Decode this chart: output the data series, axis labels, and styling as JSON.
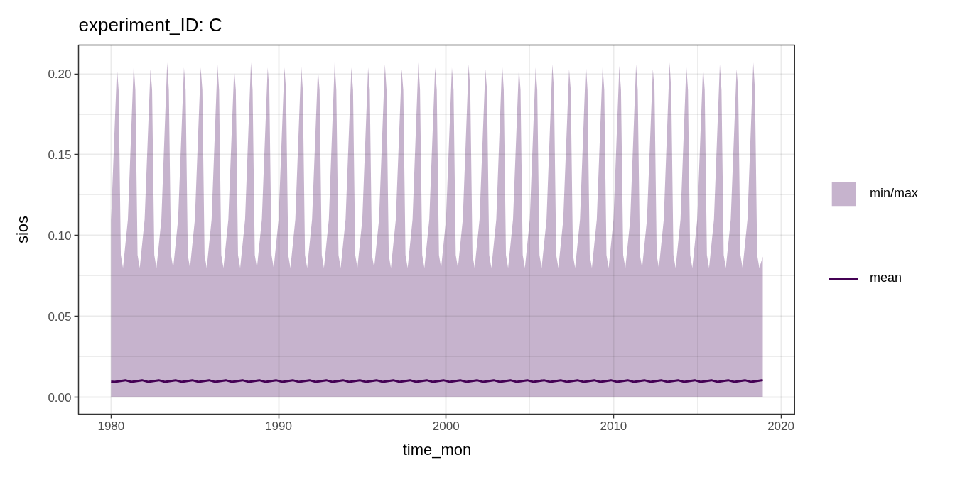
{
  "chart_data": {
    "type": "area",
    "title": "experiment_ID: C",
    "xlabel": "time_mon",
    "ylabel": "sios",
    "xlim": [
      "1978-01-20",
      "2020-11-13"
    ],
    "xticks": [
      {
        "value": "1980",
        "label": "1980"
      },
      {
        "value": "1990",
        "label": "1990"
      },
      {
        "value": "2000",
        "label": "2000"
      },
      {
        "value": "2010",
        "label": "2010"
      },
      {
        "value": "2020",
        "label": "2020"
      }
    ],
    "ylim": [
      -0.0104,
      0.2178
    ],
    "yticks": [
      {
        "value": 0,
        "label": "0.00"
      },
      {
        "value": 0.05,
        "label": "0.05"
      },
      {
        "value": 0.1,
        "label": "0.10"
      },
      {
        "value": 0.15,
        "label": "0.15"
      },
      {
        "value": 0.2,
        "label": "0.20"
      }
    ],
    "grid": true,
    "legend": "right",
    "series": [
      {
        "name": "min/max",
        "color": "#c6b3cd",
        "x": [
          "1980-01-01",
          "1980-05-08",
          "1980-06-13",
          "1980-07-31",
          "1980-09-16",
          "1981-01-01",
          "1981-05-08",
          "1981-06-13",
          "1981-07-31",
          "1981-09-16",
          "1982-01-01",
          "1982-05-08",
          "1982-06-13",
          "1982-07-31",
          "1982-09-16",
          "1983-01-01",
          "1983-05-08",
          "1983-06-13",
          "1983-07-31",
          "1983-09-16",
          "1984-01-01",
          "1984-05-08",
          "1984-06-13",
          "1984-07-31",
          "1984-09-16",
          "1985-01-01",
          "1985-05-08",
          "1985-06-13",
          "1985-07-31",
          "1985-09-16",
          "1986-01-01",
          "1986-05-08",
          "1986-06-13",
          "1986-07-31",
          "1986-09-16",
          "1987-01-01",
          "1987-05-08",
          "1987-06-13",
          "1987-07-31",
          "1987-09-16",
          "1988-01-01",
          "1988-05-08",
          "1988-06-13",
          "1988-07-31",
          "1988-09-16",
          "1989-01-01",
          "1989-05-08",
          "1989-06-13",
          "1989-07-31",
          "1989-09-16",
          "1990-01-01",
          "1990-05-08",
          "1990-06-13",
          "1990-07-31",
          "1990-09-16",
          "1991-01-01",
          "1991-05-08",
          "1991-06-13",
          "1991-07-31",
          "1991-09-16",
          "1992-01-01",
          "1992-05-08",
          "1992-06-13",
          "1992-07-31",
          "1992-09-16",
          "1993-01-01",
          "1993-05-08",
          "1993-06-13",
          "1993-07-31",
          "1993-09-16",
          "1994-01-01",
          "1994-05-08",
          "1994-06-13",
          "1994-07-31",
          "1994-09-16",
          "1995-01-01",
          "1995-05-08",
          "1995-06-13",
          "1995-07-31",
          "1995-09-16",
          "1996-01-01",
          "1996-05-08",
          "1996-06-13",
          "1996-07-31",
          "1996-09-16",
          "1997-01-01",
          "1997-05-08",
          "1997-06-13",
          "1997-07-31",
          "1997-09-16",
          "1998-01-01",
          "1998-05-08",
          "1998-06-13",
          "1998-07-31",
          "1998-09-16",
          "1999-01-01",
          "1999-05-08",
          "1999-06-13",
          "1999-07-31",
          "1999-09-16",
          "2000-01-01",
          "2000-05-08",
          "2000-06-13",
          "2000-07-31",
          "2000-09-16",
          "2001-01-01",
          "2001-05-08",
          "2001-06-13",
          "2001-07-31",
          "2001-09-16",
          "2002-01-01",
          "2002-05-08",
          "2002-06-13",
          "2002-07-31",
          "2002-09-16",
          "2003-01-01",
          "2003-05-08",
          "2003-06-13",
          "2003-07-31",
          "2003-09-16",
          "2004-01-01",
          "2004-05-08",
          "2004-06-13",
          "2004-07-31",
          "2004-09-16",
          "2005-01-01",
          "2005-05-08",
          "2005-06-13",
          "2005-07-31",
          "2005-09-16",
          "2006-01-01",
          "2006-05-08",
          "2006-06-13",
          "2006-07-31",
          "2006-09-16",
          "2007-01-01",
          "2007-05-08",
          "2007-06-13",
          "2007-07-31",
          "2007-09-16",
          "2008-01-01",
          "2008-05-08",
          "2008-06-13",
          "2008-07-31",
          "2008-09-16",
          "2009-01-01",
          "2009-05-08",
          "2009-06-13",
          "2009-07-31",
          "2009-09-16",
          "2010-01-01",
          "2010-05-08",
          "2010-06-13",
          "2010-07-31",
          "2010-09-16",
          "2011-01-01",
          "2011-05-08",
          "2011-06-13",
          "2011-07-31",
          "2011-09-16",
          "2012-01-01",
          "2012-05-08",
          "2012-06-13",
          "2012-07-31",
          "2012-09-16",
          "2013-01-01",
          "2013-05-08",
          "2013-06-13",
          "2013-07-31",
          "2013-09-16",
          "2014-01-01",
          "2014-05-08",
          "2014-06-13",
          "2014-07-31",
          "2014-09-16",
          "2015-01-01",
          "2015-05-08",
          "2015-06-13",
          "2015-07-31",
          "2015-09-16",
          "2016-01-01",
          "2016-05-08",
          "2016-06-13",
          "2016-07-31",
          "2016-09-16",
          "2017-01-01",
          "2017-05-08",
          "2017-06-13",
          "2017-07-31",
          "2017-09-16",
          "2018-01-01",
          "2018-05-08",
          "2018-06-13",
          "2018-07-31",
          "2018-09-16",
          "2018-12-01"
        ],
        "values": [
          0.11,
          0.204,
          0.19,
          0.088,
          0.08,
          0.11,
          0.206,
          0.19,
          0.088,
          0.08,
          0.11,
          0.203,
          0.19,
          0.088,
          0.08,
          0.11,
          0.207,
          0.19,
          0.088,
          0.08,
          0.11,
          0.204,
          0.19,
          0.088,
          0.08,
          0.11,
          0.204,
          0.19,
          0.088,
          0.08,
          0.11,
          0.206,
          0.19,
          0.088,
          0.08,
          0.11,
          0.203,
          0.19,
          0.088,
          0.08,
          0.11,
          0.207,
          0.19,
          0.088,
          0.08,
          0.11,
          0.204,
          0.19,
          0.088,
          0.08,
          0.11,
          0.204,
          0.19,
          0.088,
          0.08,
          0.11,
          0.206,
          0.19,
          0.088,
          0.08,
          0.11,
          0.203,
          0.19,
          0.088,
          0.08,
          0.11,
          0.207,
          0.19,
          0.088,
          0.08,
          0.11,
          0.204,
          0.19,
          0.088,
          0.08,
          0.11,
          0.204,
          0.19,
          0.088,
          0.08,
          0.11,
          0.206,
          0.19,
          0.088,
          0.08,
          0.11,
          0.203,
          0.19,
          0.088,
          0.08,
          0.11,
          0.207,
          0.19,
          0.088,
          0.08,
          0.11,
          0.204,
          0.19,
          0.088,
          0.08,
          0.11,
          0.204,
          0.19,
          0.088,
          0.08,
          0.11,
          0.206,
          0.19,
          0.088,
          0.08,
          0.11,
          0.203,
          0.19,
          0.088,
          0.08,
          0.11,
          0.207,
          0.19,
          0.088,
          0.08,
          0.11,
          0.204,
          0.19,
          0.088,
          0.08,
          0.11,
          0.204,
          0.19,
          0.088,
          0.08,
          0.11,
          0.206,
          0.19,
          0.088,
          0.08,
          0.11,
          0.203,
          0.19,
          0.088,
          0.08,
          0.11,
          0.207,
          0.19,
          0.088,
          0.08,
          0.11,
          0.205,
          0.19,
          0.088,
          0.08,
          0.11,
          0.205,
          0.19,
          0.088,
          0.08,
          0.11,
          0.206,
          0.19,
          0.088,
          0.08,
          0.11,
          0.203,
          0.19,
          0.088,
          0.08,
          0.11,
          0.207,
          0.19,
          0.088,
          0.08,
          0.11,
          0.205,
          0.19,
          0.088,
          0.08,
          0.11,
          0.205,
          0.19,
          0.088,
          0.08,
          0.11,
          0.206,
          0.19,
          0.088,
          0.08,
          0.11,
          0.203,
          0.19,
          0.088,
          0.08,
          0.11,
          0.207,
          0.19,
          0.088,
          0.08,
          0.087
        ]
      },
      {
        "name": "mean",
        "type": "line",
        "color": "#440154",
        "x": [
          "1980-01-01",
          "1980-03-15",
          "1980-11-07",
          "1981-03-15",
          "1981-11-07",
          "1982-03-15",
          "1982-11-07",
          "1983-03-15",
          "1983-11-07",
          "1984-03-15",
          "1984-11-07",
          "1985-03-15",
          "1985-11-07",
          "1986-03-15",
          "1986-11-07",
          "1987-03-15",
          "1987-11-07",
          "1988-03-15",
          "1988-11-07",
          "1989-03-15",
          "1989-11-07",
          "1990-03-15",
          "1990-11-07",
          "1991-03-15",
          "1991-11-07",
          "1992-03-15",
          "1992-11-07",
          "1993-03-15",
          "1993-11-07",
          "1994-03-15",
          "1994-11-07",
          "1995-03-15",
          "1995-11-07",
          "1996-03-15",
          "1996-11-07",
          "1997-03-15",
          "1997-11-07",
          "1998-03-15",
          "1998-11-07",
          "1999-03-15",
          "1999-11-07",
          "2000-03-15",
          "2000-11-07",
          "2001-03-15",
          "2001-11-07",
          "2002-03-15",
          "2002-11-07",
          "2003-03-15",
          "2003-11-07",
          "2004-03-15",
          "2004-11-07",
          "2005-03-15",
          "2005-11-07",
          "2006-03-15",
          "2006-11-07",
          "2007-03-15",
          "2007-11-07",
          "2008-03-15",
          "2008-11-07",
          "2009-03-15",
          "2009-11-07",
          "2010-03-15",
          "2010-11-07",
          "2011-03-15",
          "2011-11-07",
          "2012-03-15",
          "2012-11-07",
          "2013-03-15",
          "2013-11-07",
          "2014-03-15",
          "2014-11-07",
          "2015-03-15",
          "2015-11-07",
          "2016-03-15",
          "2016-11-07",
          "2017-03-15",
          "2017-11-07",
          "2018-03-15",
          "2018-11-07",
          "2018-12-01"
        ],
        "values": [
          0.0098,
          0.0096,
          0.0106,
          0.0096,
          0.0106,
          0.0096,
          0.0106,
          0.0096,
          0.0106,
          0.0096,
          0.0106,
          0.0096,
          0.0106,
          0.0096,
          0.0106,
          0.0096,
          0.0106,
          0.0096,
          0.0106,
          0.0096,
          0.0106,
          0.0096,
          0.0106,
          0.0096,
          0.0106,
          0.0096,
          0.0106,
          0.0096,
          0.0106,
          0.0096,
          0.0106,
          0.0096,
          0.0106,
          0.0096,
          0.0106,
          0.0096,
          0.0106,
          0.0096,
          0.0106,
          0.0096,
          0.0106,
          0.0096,
          0.0106,
          0.0096,
          0.0106,
          0.0096,
          0.0106,
          0.0096,
          0.0106,
          0.0096,
          0.0106,
          0.0096,
          0.0106,
          0.0096,
          0.0106,
          0.0096,
          0.0106,
          0.0096,
          0.0106,
          0.0096,
          0.0106,
          0.0096,
          0.0106,
          0.0096,
          0.0106,
          0.0096,
          0.0106,
          0.0096,
          0.0106,
          0.0096,
          0.0106,
          0.0096,
          0.0106,
          0.0096,
          0.0106,
          0.0096,
          0.0106,
          0.0096,
          0.0106,
          0.0107
        ]
      }
    ]
  }
}
